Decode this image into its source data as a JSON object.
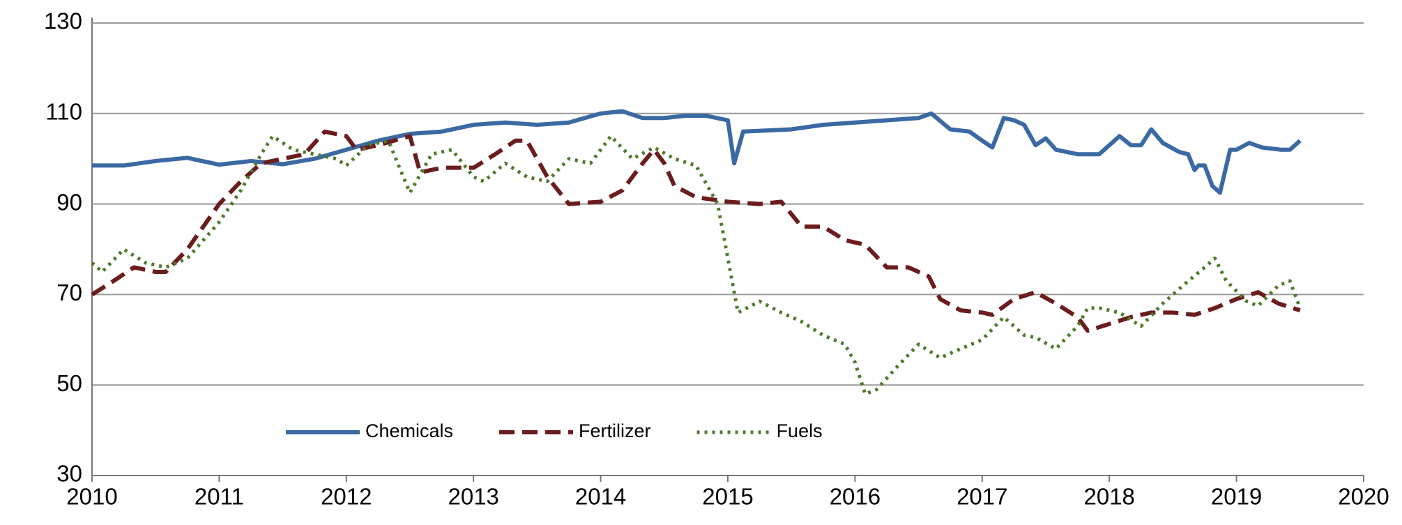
{
  "chart_data": {
    "type": "line",
    "xlim": [
      2010,
      2020
    ],
    "xticks": [
      2010,
      2011,
      2012,
      2013,
      2014,
      2015,
      2016,
      2017,
      2018,
      2019,
      2020
    ],
    "ylim": [
      30,
      130
    ],
    "yticks": [
      30,
      50,
      70,
      90,
      110,
      130
    ],
    "grid": true,
    "legend": "lower center",
    "series": [
      {
        "name": "Chemicals",
        "color": "#3a69a3",
        "style": "solid",
        "x": [
          2010.0,
          2010.25,
          2010.5,
          2010.75,
          2011.0,
          2011.25,
          2011.5,
          2011.75,
          2012.0,
          2012.25,
          2012.5,
          2012.75,
          2013.0,
          2013.25,
          2013.5,
          2013.75,
          2014.0,
          2014.17,
          2014.33,
          2014.5,
          2014.67,
          2014.83,
          2015.0,
          2015.05,
          2015.12,
          2015.5,
          2015.75,
          2016.0,
          2016.25,
          2016.5,
          2016.6,
          2016.75,
          2016.9,
          2017.0,
          2017.08,
          2017.17,
          2017.25,
          2017.33,
          2017.42,
          2017.5,
          2017.58,
          2017.75,
          2017.92,
          2018.0,
          2018.08,
          2018.17,
          2018.25,
          2018.33,
          2018.42,
          2018.55,
          2018.62,
          2018.67,
          2018.7,
          2018.75,
          2018.81,
          2018.87,
          2018.95,
          2019.0,
          2019.1,
          2019.2,
          2019.35,
          2019.42,
          2019.5
        ],
        "values": [
          98.5,
          98.5,
          99.5,
          100.2,
          98.7,
          99.5,
          98.8,
          100,
          102,
          104,
          105.5,
          106,
          107.5,
          108,
          107.5,
          108,
          110,
          110.5,
          109,
          109,
          109.5,
          109.5,
          108.5,
          99,
          106,
          106.5,
          107.5,
          108,
          108.5,
          109,
          110,
          106.5,
          106,
          104,
          102.5,
          109,
          108.5,
          107.5,
          103,
          104.5,
          102,
          101,
          101,
          103,
          105,
          103,
          103,
          106.5,
          103.5,
          101.5,
          101,
          97.5,
          98.5,
          98.5,
          94,
          92.5,
          102,
          102,
          103.5,
          102.5,
          102,
          102,
          104
        ]
      },
      {
        "name": "Fertilizer",
        "color": "#6b1c1c",
        "style": "dashed",
        "x": [
          2010.0,
          2010.17,
          2010.33,
          2010.5,
          2010.58,
          2010.75,
          2011.0,
          2011.17,
          2011.33,
          2011.5,
          2011.67,
          2011.83,
          2012.0,
          2012.08,
          2012.25,
          2012.5,
          2012.58,
          2012.75,
          2013.0,
          2013.17,
          2013.33,
          2013.42,
          2013.58,
          2013.75,
          2014.0,
          2014.17,
          2014.33,
          2014.42,
          2014.5,
          2014.58,
          2014.75,
          2015.0,
          2015.25,
          2015.42,
          2015.58,
          2015.75,
          2015.92,
          2016.08,
          2016.25,
          2016.42,
          2016.58,
          2016.67,
          2016.83,
          2017.0,
          2017.08,
          2017.25,
          2017.42,
          2017.58,
          2017.75,
          2017.83,
          2018.0,
          2018.17,
          2018.33,
          2018.5,
          2018.67,
          2018.83,
          2019.0,
          2019.17,
          2019.33,
          2019.5
        ],
        "values": [
          70,
          73,
          76,
          75,
          75,
          80,
          90,
          95,
          99,
          100,
          101,
          106,
          105,
          102,
          103,
          105,
          97,
          98,
          98,
          101,
          104,
          104,
          96,
          90,
          90.5,
          93,
          99,
          102,
          99,
          94,
          91.5,
          90.5,
          90,
          90.5,
          85,
          85,
          82,
          81,
          76,
          76,
          74,
          69,
          66.5,
          66,
          65.5,
          69,
          70.5,
          68,
          65,
          62,
          63.5,
          65,
          66,
          66,
          65.5,
          67,
          69,
          70.5,
          68,
          66.5
        ]
      },
      {
        "name": "Fuels",
        "color": "#4f7a2a",
        "style": "dotted",
        "x": [
          2010.0,
          2010.08,
          2010.25,
          2010.42,
          2010.58,
          2010.75,
          2011.0,
          2011.17,
          2011.33,
          2011.42,
          2011.58,
          2011.75,
          2011.92,
          2012.0,
          2012.17,
          2012.33,
          2012.5,
          2012.67,
          2012.83,
          2013.0,
          2013.08,
          2013.25,
          2013.42,
          2013.58,
          2013.75,
          2013.92,
          2014.08,
          2014.25,
          2014.42,
          2014.58,
          2014.75,
          2014.92,
          2015.0,
          2015.08,
          2015.25,
          2015.42,
          2015.58,
          2015.75,
          2015.92,
          2016.0,
          2016.08,
          2016.17,
          2016.33,
          2016.5,
          2016.67,
          2016.83,
          2017.0,
          2017.17,
          2017.33,
          2017.42,
          2017.58,
          2017.75,
          2017.83,
          2017.92,
          2018.08,
          2018.25,
          2018.42,
          2018.58,
          2018.75,
          2018.83,
          2018.92,
          2019.08,
          2019.17,
          2019.33,
          2019.42,
          2019.5
        ],
        "values": [
          77,
          75,
          80,
          77,
          76,
          78,
          86,
          93,
          101,
          105,
          102,
          101,
          100,
          98.5,
          103,
          104,
          92.5,
          101,
          102,
          96,
          95,
          99,
          96,
          95,
          100,
          99,
          105,
          100,
          102.5,
          100,
          98.5,
          90,
          78,
          66,
          68.5,
          66,
          64,
          61,
          59,
          55,
          48,
          49,
          54,
          59,
          56,
          58,
          60,
          65,
          61,
          60.5,
          58,
          63,
          67,
          67,
          66,
          63,
          68,
          72,
          76,
          78,
          73,
          68.5,
          67.5,
          72,
          73,
          67
        ]
      }
    ]
  }
}
